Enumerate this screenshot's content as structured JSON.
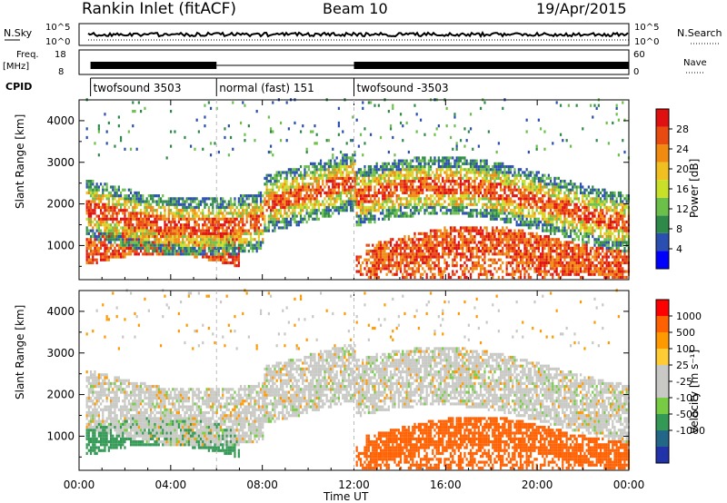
{
  "header": {
    "title": "Rankin Inlet (fitACF)",
    "beam": "Beam 10",
    "date": "19/Apr/2015"
  },
  "strips": {
    "nsky_label": "N.Sky",
    "nsky_ticks": [
      "10^5",
      "10^0"
    ],
    "nsearch_label": "N.Search",
    "freq_label_1": "Freq.",
    "freq_label_2": "[MHz]",
    "freq_ticks_left": [
      "18",
      "8"
    ],
    "freq_ticks_right": [
      "60",
      "0"
    ],
    "nave_label": "Nave",
    "cpid_label": "CPID",
    "cpid_segments": [
      {
        "label": "twofsound 3503",
        "start": 0.5,
        "end": 6.0
      },
      {
        "label": "normal (fast) 151",
        "start": 6.0,
        "end": 12.0
      },
      {
        "label": "twofsound -3503",
        "start": 12.0,
        "end": 24.0
      }
    ]
  },
  "x_axis": {
    "label": "Time UT",
    "ticks": [
      "00:00",
      "04:00",
      "08:00",
      "12:00",
      "16:00",
      "20:00",
      "00:00"
    ]
  },
  "colors": {
    "power": [
      "#0000ff",
      "#2a4fb0",
      "#2f8a4a",
      "#6cc04a",
      "#c8e028",
      "#f0c020",
      "#f08a10",
      "#e84a10",
      "#e01010"
    ],
    "velocity": [
      "#ff0000",
      "#ff6000",
      "#ff9900",
      "#ffcc33",
      "#c8c8c4",
      "#c8c8c4",
      "#77cc44",
      "#339955",
      "#226688",
      "#2233aa"
    ]
  },
  "chart_data": [
    {
      "type": "heatmap",
      "panel": "power",
      "ylabel": "Slant Range [km]",
      "yticks": [
        1000,
        2000,
        3000,
        4000
      ],
      "ylim": [
        180,
        4500
      ],
      "xlim_hours": [
        0,
        24
      ],
      "colorbar_label": "Power [dB]",
      "colorbar_ticks": [
        4,
        8,
        12,
        16,
        20,
        24,
        28
      ],
      "colorbar_range": [
        0,
        32
      ]
    },
    {
      "type": "heatmap",
      "panel": "velocity",
      "ylabel": "Slant Range [km]",
      "yticks": [
        1000,
        2000,
        3000,
        4000
      ],
      "ylim": [
        180,
        4500
      ],
      "xlim_hours": [
        0,
        24
      ],
      "colorbar_label": "Velocity [m s⁻¹]",
      "colorbar_ticks": [
        1000,
        500,
        100,
        25,
        -25,
        -100,
        -500,
        -1000
      ]
    }
  ]
}
